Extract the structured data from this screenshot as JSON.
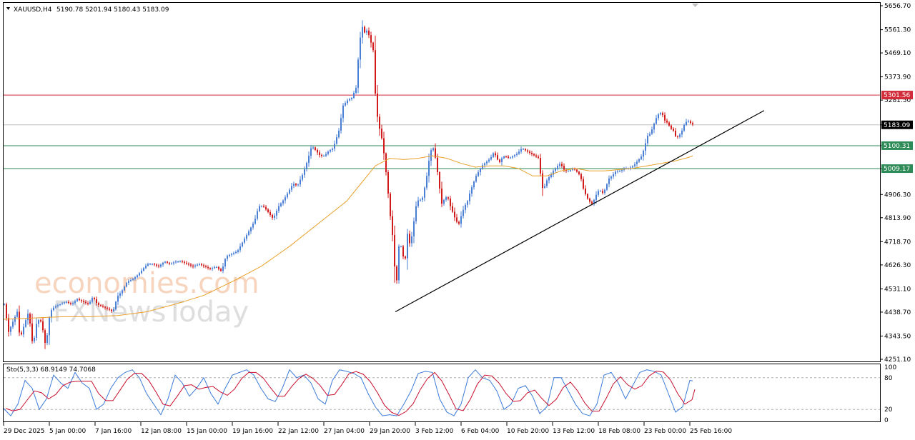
{
  "header": {
    "symbol": "XAUUSD,H4",
    "ohlc": "5190.78 5201.94 5180.43 5183.09"
  },
  "watermark": {
    "brand1": "economies.com",
    "brand2": "FXNewsToday"
  },
  "colors": {
    "bull": "#4a7fd6",
    "bear": "#d11a1a",
    "ma": "#e8a02a",
    "resistance": "#d22b3a",
    "support": "#2e8b57",
    "trendline": "#000000",
    "stoch_main": "#3b7bd8",
    "stoch_signal": "#c8102e"
  },
  "levels": [
    {
      "value": 5301.56,
      "label": "5301.56",
      "kind": "resistance"
    },
    {
      "value": 5183.09,
      "label": "5183.09",
      "kind": "current"
    },
    {
      "value": 5100.31,
      "label": "5100.31",
      "kind": "support"
    },
    {
      "value": 5009.17,
      "label": "5009.17",
      "kind": "support"
    }
  ],
  "stochastic": {
    "label": "Sto(5,3,3) 68.9149 74.7068",
    "levels": [
      "100",
      "80",
      "20",
      "0"
    ]
  },
  "chart_data": {
    "type": "candlestick",
    "symbol": "XAUUSD",
    "timeframe": "H4",
    "ylim": [
      4251.1,
      5656.7
    ],
    "y_ticks": [
      "5656.70",
      "5561.30",
      "5469.10",
      "5373.90",
      "5281.50",
      "5183.09",
      "5100.31",
      "5009.17",
      "4906.30",
      "4813.90",
      "4718.70",
      "4626.30",
      "4531.10",
      "4438.70",
      "4343.50",
      "4251.10"
    ],
    "x_ticks": [
      "29 Dec 2025",
      "5 Jan 00:00",
      "7 Jan 16:00",
      "12 Jan 08:00",
      "15 Jan 00:00",
      "19 Jan 16:00",
      "22 Jan 12:00",
      "27 Jan 04:00",
      "29 Jan 20:00",
      "3 Feb 12:00",
      "6 Feb 04:00",
      "10 Feb 20:00",
      "13 Feb 12:00",
      "18 Feb 08:00",
      "23 Feb 00:00",
      "25 Feb 16:00"
    ],
    "price_path": [
      [
        0,
        4470
      ],
      [
        6,
        4360
      ],
      [
        12,
        4400
      ],
      [
        18,
        4440
      ],
      [
        22,
        4330
      ],
      [
        28,
        4390
      ],
      [
        34,
        4440
      ],
      [
        40,
        4300
      ],
      [
        46,
        4410
      ],
      [
        52,
        4400
      ],
      [
        58,
        4300
      ],
      [
        64,
        4440
      ],
      [
        70,
        4460
      ],
      [
        78,
        4470
      ],
      [
        86,
        4480
      ],
      [
        94,
        4470
      ],
      [
        102,
        4490
      ],
      [
        110,
        4480
      ],
      [
        118,
        4470
      ],
      [
        124,
        4500
      ],
      [
        130,
        4470
      ],
      [
        138,
        4460
      ],
      [
        146,
        4450
      ],
      [
        152,
        4440
      ],
      [
        158,
        4500
      ],
      [
        164,
        4520
      ],
      [
        172,
        4560
      ],
      [
        180,
        4570
      ],
      [
        188,
        4590
      ],
      [
        194,
        4610
      ],
      [
        200,
        4630
      ],
      [
        208,
        4630
      ],
      [
        216,
        4620
      ],
      [
        224,
        4640
      ],
      [
        232,
        4630
      ],
      [
        240,
        4640
      ],
      [
        248,
        4640
      ],
      [
        256,
        4630
      ],
      [
        264,
        4620
      ],
      [
        272,
        4630
      ],
      [
        280,
        4620
      ],
      [
        288,
        4610
      ],
      [
        296,
        4620
      ],
      [
        304,
        4600
      ],
      [
        310,
        4660
      ],
      [
        318,
        4670
      ],
      [
        326,
        4680
      ],
      [
        334,
        4720
      ],
      [
        342,
        4760
      ],
      [
        350,
        4800
      ],
      [
        356,
        4860
      ],
      [
        362,
        4860
      ],
      [
        368,
        4840
      ],
      [
        376,
        4810
      ],
      [
        384,
        4860
      ],
      [
        392,
        4890
      ],
      [
        398,
        4920
      ],
      [
        404,
        4950
      ],
      [
        410,
        4940
      ],
      [
        418,
        4990
      ],
      [
        424,
        5040
      ],
      [
        430,
        5100
      ],
      [
        436,
        5080
      ],
      [
        442,
        5060
      ],
      [
        448,
        5060
      ],
      [
        454,
        5080
      ],
      [
        460,
        5090
      ],
      [
        468,
        5160
      ],
      [
        474,
        5260
      ],
      [
        480,
        5280
      ],
      [
        486,
        5290
      ],
      [
        492,
        5330
      ],
      [
        496,
        5480
      ],
      [
        500,
        5580
      ],
      [
        504,
        5550
      ],
      [
        508,
        5560
      ],
      [
        512,
        5520
      ],
      [
        516,
        5480
      ],
      [
        520,
        5250
      ],
      [
        524,
        5180
      ],
      [
        528,
        5130
      ],
      [
        532,
        5050
      ],
      [
        536,
        4940
      ],
      [
        540,
        4820
      ],
      [
        544,
        4720
      ],
      [
        548,
        4520
      ],
      [
        552,
        4700
      ],
      [
        556,
        4700
      ],
      [
        560,
        4620
      ],
      [
        564,
        4750
      ],
      [
        568,
        4700
      ],
      [
        572,
        4780
      ],
      [
        576,
        4860
      ],
      [
        580,
        4890
      ],
      [
        584,
        4880
      ],
      [
        590,
        4960
      ],
      [
        596,
        5080
      ],
      [
        600,
        5090
      ],
      [
        604,
        5040
      ],
      [
        608,
        4950
      ],
      [
        612,
        4870
      ],
      [
        616,
        4890
      ],
      [
        620,
        4900
      ],
      [
        624,
        4860
      ],
      [
        628,
        4830
      ],
      [
        632,
        4800
      ],
      [
        636,
        4790
      ],
      [
        640,
        4830
      ],
      [
        644,
        4860
      ],
      [
        648,
        4880
      ],
      [
        652,
        4920
      ],
      [
        656,
        4950
      ],
      [
        660,
        4980
      ],
      [
        664,
        5000
      ],
      [
        668,
        5020
      ],
      [
        672,
        5030
      ],
      [
        676,
        5040
      ],
      [
        680,
        5050
      ],
      [
        684,
        5070
      ],
      [
        688,
        5060
      ],
      [
        692,
        5030
      ],
      [
        696,
        5050
      ],
      [
        700,
        5060
      ],
      [
        706,
        5050
      ],
      [
        712,
        5060
      ],
      [
        718,
        5070
      ],
      [
        724,
        5090
      ],
      [
        730,
        5080
      ],
      [
        736,
        5070
      ],
      [
        742,
        5060
      ],
      [
        748,
        5050
      ],
      [
        752,
        4930
      ],
      [
        756,
        4940
      ],
      [
        760,
        4970
      ],
      [
        764,
        4980
      ],
      [
        768,
        5000
      ],
      [
        772,
        5010
      ],
      [
        776,
        5030
      ],
      [
        780,
        5020
      ],
      [
        784,
        5000
      ],
      [
        790,
        5000
      ],
      [
        796,
        5010
      ],
      [
        800,
        5000
      ],
      [
        806,
        4980
      ],
      [
        810,
        4930
      ],
      [
        814,
        4900
      ],
      [
        818,
        4880
      ],
      [
        822,
        4870
      ],
      [
        826,
        4890
      ],
      [
        830,
        4920
      ],
      [
        834,
        4920
      ],
      [
        838,
        4910
      ],
      [
        842,
        4940
      ],
      [
        846,
        4970
      ],
      [
        850,
        4980
      ],
      [
        856,
        5000
      ],
      [
        862,
        5000
      ],
      [
        868,
        5010
      ],
      [
        874,
        5010
      ],
      [
        880,
        5020
      ],
      [
        886,
        5040
      ],
      [
        892,
        5060
      ],
      [
        896,
        5100
      ],
      [
        900,
        5140
      ],
      [
        904,
        5150
      ],
      [
        908,
        5180
      ],
      [
        912,
        5210
      ],
      [
        916,
        5230
      ],
      [
        920,
        5230
      ],
      [
        924,
        5200
      ],
      [
        928,
        5190
      ],
      [
        932,
        5170
      ],
      [
        936,
        5160
      ],
      [
        940,
        5130
      ],
      [
        944,
        5140
      ],
      [
        948,
        5160
      ],
      [
        952,
        5190
      ],
      [
        956,
        5200
      ],
      [
        960,
        5190
      ],
      [
        964,
        5183
      ]
    ],
    "ma_path": [
      [
        0,
        4410
      ],
      [
        40,
        4415
      ],
      [
        80,
        4420
      ],
      [
        120,
        4420
      ],
      [
        160,
        4425
      ],
      [
        200,
        4440
      ],
      [
        240,
        4470
      ],
      [
        280,
        4505
      ],
      [
        320,
        4560
      ],
      [
        360,
        4620
      ],
      [
        400,
        4700
      ],
      [
        440,
        4790
      ],
      [
        480,
        4880
      ],
      [
        500,
        4950
      ],
      [
        520,
        5020
      ],
      [
        540,
        5050
      ],
      [
        560,
        5045
      ],
      [
        580,
        5050
      ],
      [
        600,
        5060
      ],
      [
        620,
        5050
      ],
      [
        640,
        5030
      ],
      [
        660,
        5015
      ],
      [
        680,
        5020
      ],
      [
        700,
        5020
      ],
      [
        720,
        5010
      ],
      [
        740,
        4980
      ],
      [
        760,
        4980
      ],
      [
        780,
        5000
      ],
      [
        800,
        5010
      ],
      [
        820,
        5000
      ],
      [
        840,
        5000
      ],
      [
        860,
        5005
      ],
      [
        880,
        5010
      ],
      [
        900,
        5020
      ],
      [
        920,
        5030
      ],
      [
        940,
        5040
      ],
      [
        960,
        5055
      ],
      [
        964,
        5060
      ]
    ],
    "trendline": {
      "from": [
        548,
        4440
      ],
      "to": [
        1064,
        5240
      ]
    },
    "stochastic_main": [
      [
        0,
        22
      ],
      [
        10,
        8
      ],
      [
        20,
        30
      ],
      [
        30,
        75
      ],
      [
        40,
        60
      ],
      [
        50,
        20
      ],
      [
        60,
        40
      ],
      [
        70,
        85
      ],
      [
        80,
        70
      ],
      [
        90,
        60
      ],
      [
        100,
        90
      ],
      [
        110,
        70
      ],
      [
        120,
        60
      ],
      [
        130,
        20
      ],
      [
        140,
        30
      ],
      [
        150,
        60
      ],
      [
        160,
        80
      ],
      [
        170,
        90
      ],
      [
        180,
        95
      ],
      [
        190,
        80
      ],
      [
        200,
        50
      ],
      [
        210,
        30
      ],
      [
        220,
        10
      ],
      [
        230,
        40
      ],
      [
        240,
        85
      ],
      [
        250,
        70
      ],
      [
        260,
        45
      ],
      [
        270,
        60
      ],
      [
        280,
        80
      ],
      [
        290,
        50
      ],
      [
        300,
        30
      ],
      [
        310,
        60
      ],
      [
        320,
        85
      ],
      [
        330,
        90
      ],
      [
        340,
        95
      ],
      [
        350,
        85
      ],
      [
        360,
        60
      ],
      [
        370,
        40
      ],
      [
        380,
        35
      ],
      [
        390,
        60
      ],
      [
        400,
        95
      ],
      [
        410,
        80
      ],
      [
        420,
        85
      ],
      [
        430,
        70
      ],
      [
        440,
        40
      ],
      [
        450,
        30
      ],
      [
        460,
        75
      ],
      [
        470,
        95
      ],
      [
        480,
        92
      ],
      [
        490,
        88
      ],
      [
        500,
        80
      ],
      [
        510,
        50
      ],
      [
        520,
        25
      ],
      [
        530,
        8
      ],
      [
        540,
        10
      ],
      [
        550,
        8
      ],
      [
        560,
        30
      ],
      [
        570,
        55
      ],
      [
        580,
        88
      ],
      [
        590,
        92
      ],
      [
        600,
        90
      ],
      [
        610,
        40
      ],
      [
        620,
        15
      ],
      [
        630,
        8
      ],
      [
        640,
        30
      ],
      [
        650,
        80
      ],
      [
        660,
        95
      ],
      [
        670,
        80
      ],
      [
        680,
        75
      ],
      [
        690,
        55
      ],
      [
        700,
        20
      ],
      [
        710,
        30
      ],
      [
        720,
        60
      ],
      [
        730,
        65
      ],
      [
        740,
        45
      ],
      [
        750,
        12
      ],
      [
        760,
        25
      ],
      [
        770,
        80
      ],
      [
        780,
        80
      ],
      [
        790,
        55
      ],
      [
        800,
        30
      ],
      [
        810,
        12
      ],
      [
        820,
        8
      ],
      [
        830,
        30
      ],
      [
        840,
        85
      ],
      [
        850,
        90
      ],
      [
        860,
        70
      ],
      [
        870,
        40
      ],
      [
        880,
        65
      ],
      [
        890,
        90
      ],
      [
        900,
        95
      ],
      [
        910,
        92
      ],
      [
        920,
        85
      ],
      [
        930,
        50
      ],
      [
        940,
        15
      ],
      [
        950,
        25
      ],
      [
        960,
        75
      ],
      [
        964,
        74
      ]
    ]
  }
}
